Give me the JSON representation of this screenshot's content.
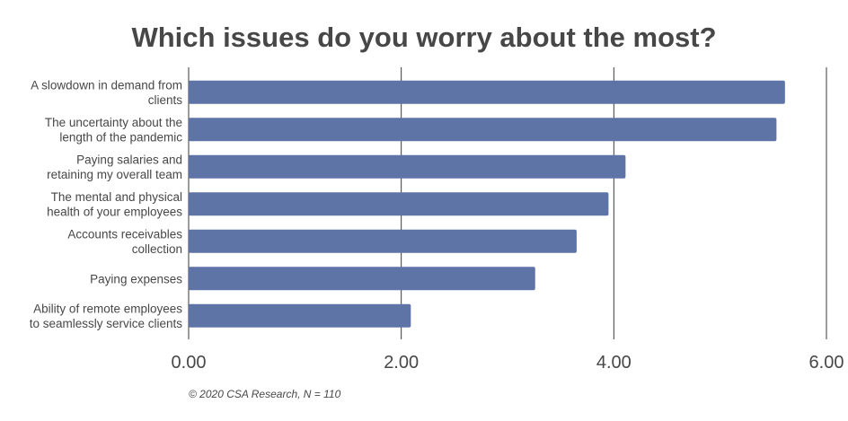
{
  "chart_data": {
    "type": "bar",
    "orientation": "horizontal",
    "title": "Which issues do you worry about the most?",
    "categories": [
      [
        "A slowdown in demand from",
        "clients"
      ],
      [
        "The uncertainty about the",
        "length of the pandemic"
      ],
      [
        "Paying salaries and",
        "retaining my overall team"
      ],
      [
        "The mental and physical",
        "health of your employees"
      ],
      [
        "Accounts receivables",
        "collection"
      ],
      [
        "Paying expenses"
      ],
      [
        "Ability of remote employees",
        "to seamlessly service clients"
      ]
    ],
    "values": [
      5.61,
      5.53,
      4.11,
      3.95,
      3.65,
      3.26,
      2.09
    ],
    "xlabel": "",
    "ylabel": "",
    "xlim": [
      0,
      6
    ],
    "ticks": [
      0,
      2,
      4,
      6
    ],
    "tick_labels": [
      "0.00",
      "2.00",
      "4.00",
      "6.00"
    ],
    "grid": true,
    "legend": "none",
    "bar_color": "#5e74a6",
    "gridline_color": "#3a3a3a",
    "footnote": "© 2020 CSA Research, N = 110"
  }
}
